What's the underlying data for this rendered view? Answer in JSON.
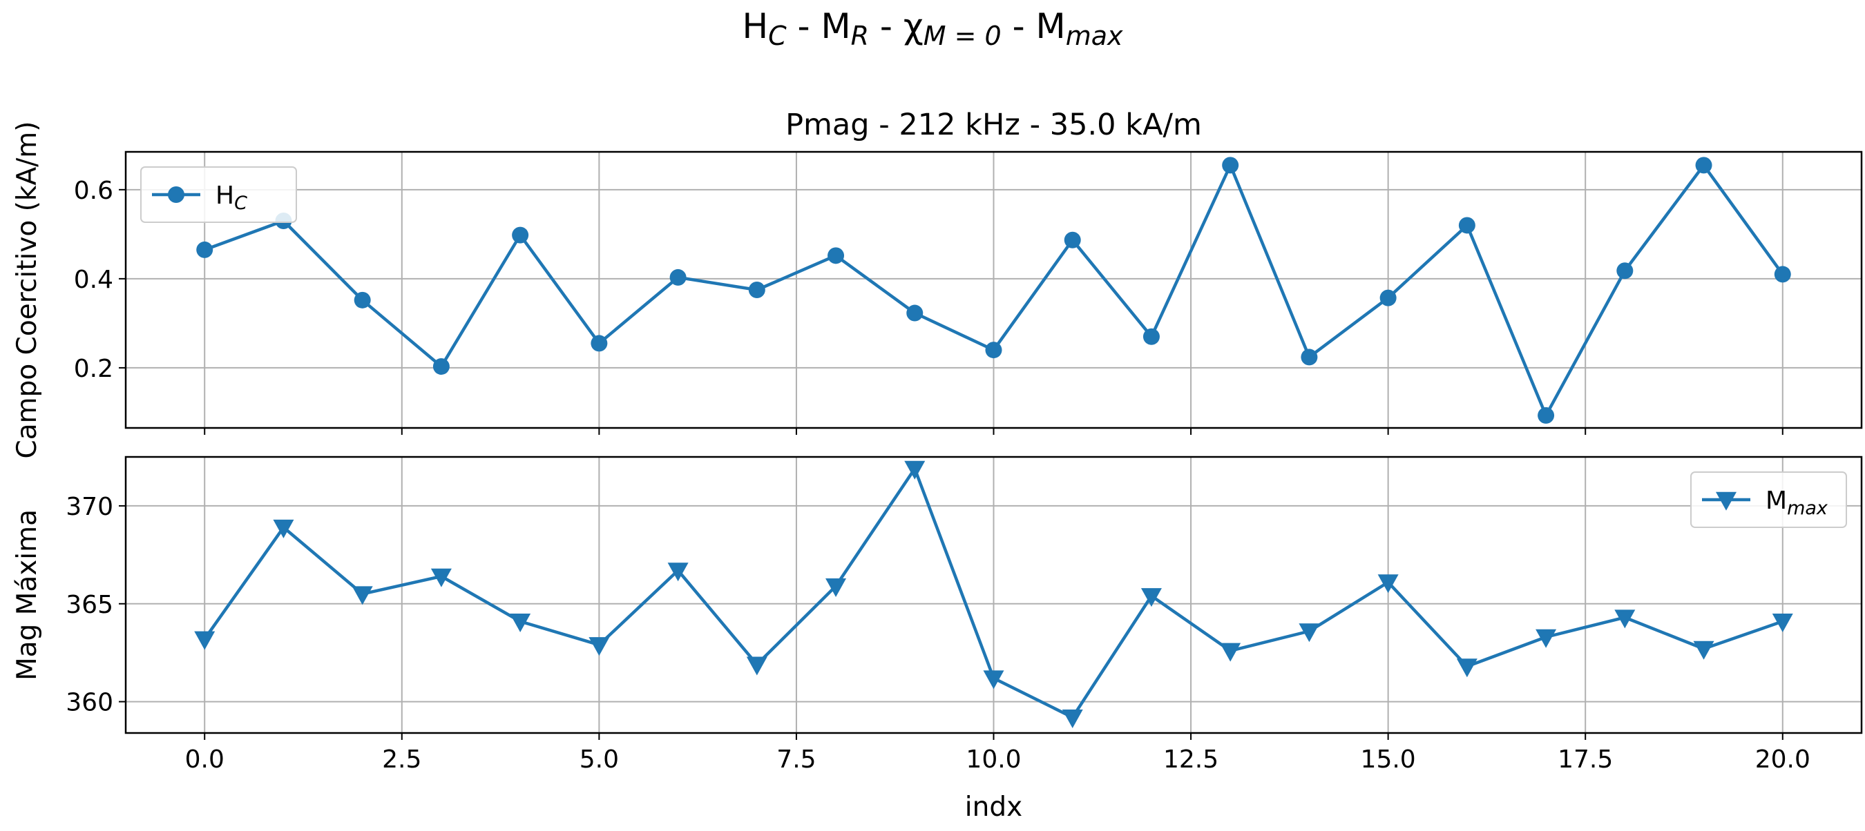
{
  "chart_data": [
    {
      "type": "line",
      "suptitle": {
        "main": "H",
        "sub": "C",
        "sep1": " - M",
        "sub2": "R",
        "sep2": " - χ",
        "sub3": "M = 0",
        "sep3": " - M",
        "sub4": "max"
      },
      "title": "Pmag - 212 kHz - 35.0 kA/m",
      "xlabel": "",
      "ylabel": "Campo Coercitivo (kA/m)",
      "xlim": [
        -1.0,
        21.0
      ],
      "ylim": [
        0.065,
        0.685
      ],
      "yticks": [
        0.2,
        0.4,
        0.6
      ],
      "ytick_labels": [
        "0.2",
        "0.4",
        "0.6"
      ],
      "xticks": [
        0.0,
        2.5,
        5.0,
        7.5,
        10.0,
        12.5,
        15.0,
        17.5,
        20.0
      ],
      "xtick_labels": [
        "",
        "",
        "",
        "",
        "",
        "",
        "",
        "",
        ""
      ],
      "grid": true,
      "legend_position": "top-left",
      "series": [
        {
          "name": "H",
          "name_sub": "C",
          "marker": "circle",
          "color": "#1f77b4",
          "x": [
            0,
            1,
            2,
            3,
            4,
            5,
            6,
            7,
            8,
            9,
            10,
            11,
            12,
            13,
            14,
            15,
            16,
            17,
            18,
            19,
            20
          ],
          "values": [
            0.465,
            0.53,
            0.352,
            0.203,
            0.498,
            0.255,
            0.403,
            0.375,
            0.452,
            0.323,
            0.24,
            0.487,
            0.27,
            0.655,
            0.224,
            0.357,
            0.52,
            0.093,
            0.418,
            0.655,
            0.41
          ]
        }
      ]
    },
    {
      "type": "line",
      "title": "",
      "xlabel": "indx",
      "ylabel": "Mag Máxima",
      "xlim": [
        -1.0,
        21.0
      ],
      "ylim": [
        358.4,
        372.5
      ],
      "yticks": [
        360,
        365,
        370
      ],
      "ytick_labels": [
        "360",
        "365",
        "370"
      ],
      "xticks": [
        0.0,
        2.5,
        5.0,
        7.5,
        10.0,
        12.5,
        15.0,
        17.5,
        20.0
      ],
      "xtick_labels": [
        "0.0",
        "2.5",
        "5.0",
        "7.5",
        "10.0",
        "12.5",
        "15.0",
        "17.5",
        "20.0"
      ],
      "grid": true,
      "legend_position": "top-right",
      "series": [
        {
          "name": "M",
          "name_sub": "max",
          "marker": "triangle-down",
          "color": "#1f77b4",
          "x": [
            0,
            1,
            2,
            3,
            4,
            5,
            6,
            7,
            8,
            9,
            10,
            11,
            12,
            13,
            14,
            15,
            16,
            17,
            18,
            19,
            20
          ],
          "values": [
            363.2,
            368.9,
            365.5,
            366.4,
            364.1,
            362.9,
            366.7,
            361.9,
            365.9,
            371.9,
            361.2,
            359.2,
            365.4,
            362.6,
            363.6,
            366.1,
            361.8,
            363.3,
            364.3,
            362.7,
            364.1
          ]
        }
      ]
    }
  ]
}
